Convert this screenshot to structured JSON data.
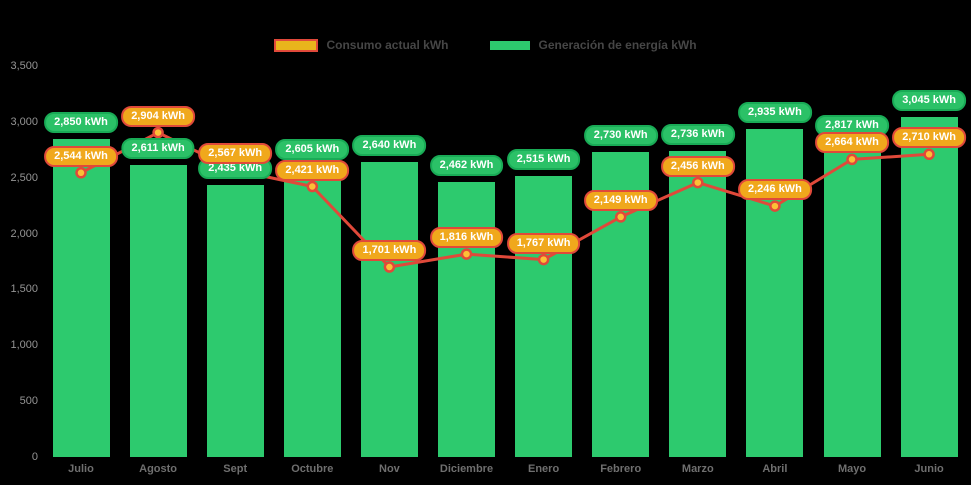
{
  "legend": {
    "items": [
      {
        "label": "Consumo actual kWh",
        "swatch_fill": "#e9b51c",
        "swatch_border": "#e0493a"
      },
      {
        "label": "Generación de energía kWh",
        "swatch_fill": "#2dca6e",
        "swatch_border": ""
      }
    ]
  },
  "chart_data": {
    "type": "combo_bar_line",
    "title": "",
    "xlabel": "",
    "ylabel": "",
    "unit": "kWh",
    "grid": false,
    "legend_position": "top-center",
    "background": "#000000",
    "categories": [
      "Julio",
      "Agosto",
      "Sept",
      "Octubre",
      "Nov",
      "Diciembre",
      "Enero",
      "Febrero",
      "Marzo",
      "Abril",
      "Mayo",
      "Junio"
    ],
    "series": [
      {
        "name": "Generación de energía kWh",
        "type": "bar",
        "values": [
          2850,
          2611,
          2435,
          2605,
          2640,
          2462,
          2515,
          2730,
          2736,
          2935,
          2817,
          3045
        ],
        "color": "#2dca6e",
        "label_bg": "#2bc167",
        "label_border": "#19ab56",
        "label_text_color": "#ffffff"
      },
      {
        "name": "Consumo actual kWh",
        "type": "line",
        "values": [
          2544,
          2904,
          2567,
          2421,
          1701,
          1816,
          1767,
          2149,
          2456,
          2246,
          2664,
          2710
        ],
        "color": "#e0493a",
        "marker_fill": "#fcbf36",
        "marker_border": "#e0493a",
        "label_bg": "#f0a81c",
        "label_border": "#e0493a",
        "label_text_color": "#ffffff"
      }
    ],
    "yticks": [
      0,
      500,
      1000,
      1500,
      2000,
      2500,
      3000,
      3500
    ],
    "ylim": [
      0,
      3500
    ]
  }
}
